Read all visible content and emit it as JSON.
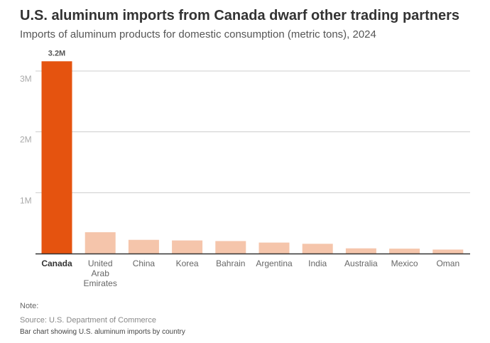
{
  "header": {
    "title": "U.S. aluminum imports from Canada dwarf other trading partners",
    "subtitle": "Imports of aluminum products for domestic consumption (metric tons), 2024"
  },
  "footer": {
    "note": "Note:",
    "source": "Source: U.S. Department of Commerce",
    "description": "Bar chart showing U.S. aluminum imports by country"
  },
  "colors": {
    "highlight": "#e5530f",
    "bar": "#f5c5ab",
    "grid": "#cccccc",
    "axis": "#333333"
  },
  "chart_data": {
    "type": "bar",
    "categories": [
      "Canada",
      "United Arab Emirates",
      "China",
      "Korea",
      "Bahrain",
      "Argentina",
      "India",
      "Australia",
      "Mexico",
      "Oman"
    ],
    "category_lines": [
      [
        "Canada"
      ],
      [
        "United",
        "Arab",
        "Emirates"
      ],
      [
        "China"
      ],
      [
        "Korea"
      ],
      [
        "Bahrain"
      ],
      [
        "Argentina"
      ],
      [
        "India"
      ],
      [
        "Australia"
      ],
      [
        "Mexico"
      ],
      [
        "Oman"
      ]
    ],
    "values": [
      3160000,
      350000,
      225000,
      215000,
      205000,
      180000,
      160000,
      85000,
      80000,
      65000
    ],
    "highlight_index": 0,
    "data_labels": [
      {
        "index": 0,
        "text": "3.2M"
      }
    ],
    "ylim": [
      0,
      3000000
    ],
    "yticks": [
      {
        "value": 1000000,
        "label": "1M"
      },
      {
        "value": 2000000,
        "label": "2M"
      },
      {
        "value": 3000000,
        "label": "3M"
      }
    ],
    "grid": true,
    "title": "U.S. aluminum imports from Canada dwarf other trading partners",
    "xlabel": "",
    "ylabel": ""
  }
}
